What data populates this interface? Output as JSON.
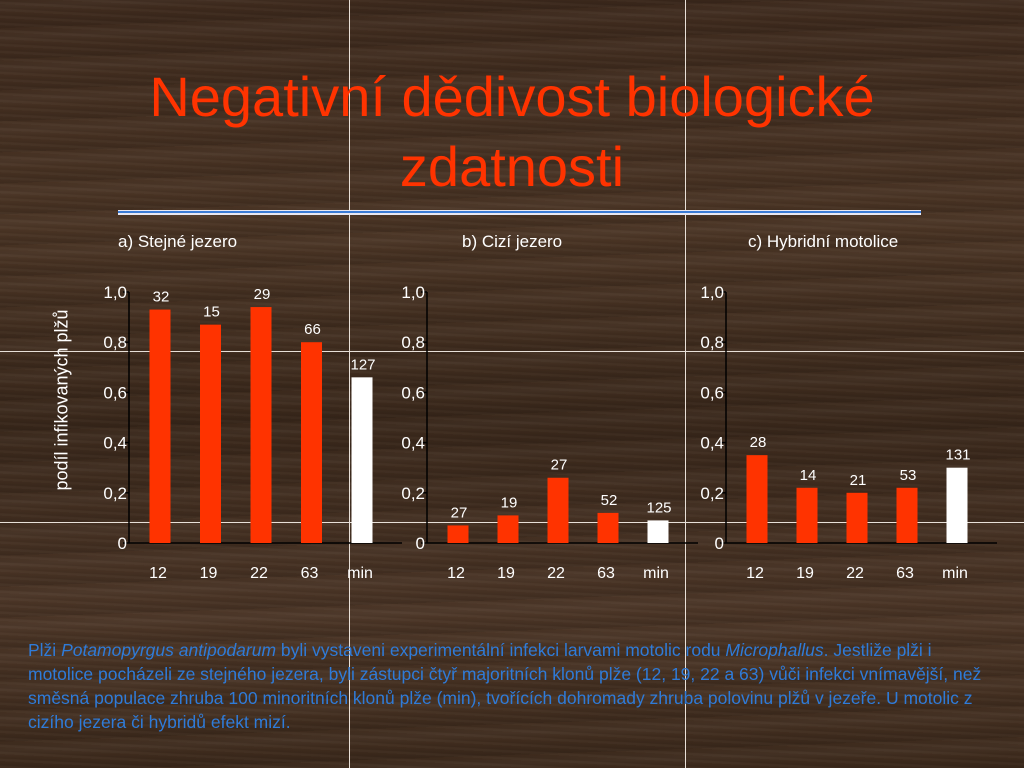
{
  "title": "Negativní dědivost biologické zdatnosti",
  "ylabel": "podíl infikovaných plžů",
  "colors": {
    "title": "#ff3300",
    "majority_bar": "#ff3300",
    "minority_bar": "#ffffff",
    "caption": "#2f7bd8",
    "text": "#ffffff"
  },
  "chart_data": [
    {
      "type": "bar",
      "title": "a) Stejné jezero",
      "categories": [
        "12",
        "19",
        "22",
        "63",
        "min"
      ],
      "values": [
        0.93,
        0.87,
        0.94,
        0.8,
        0.66
      ],
      "labels": [
        "32",
        "15",
        "29",
        "66",
        "127"
      ],
      "bar_colors": [
        "#ff3300",
        "#ff3300",
        "#ff3300",
        "#ff3300",
        "#ffffff"
      ],
      "ylim": [
        0,
        1.0
      ],
      "yticks": [
        "0",
        "0,2",
        "0,4",
        "0,6",
        "0,8",
        "1,0"
      ],
      "ylabel": "podíl infikovaných plžů"
    },
    {
      "type": "bar",
      "title": "b) Cizí jezero",
      "categories": [
        "12",
        "19",
        "22",
        "63",
        "min"
      ],
      "values": [
        0.07,
        0.11,
        0.26,
        0.12,
        0.09
      ],
      "labels": [
        "27",
        "19",
        "27",
        "52",
        "125"
      ],
      "bar_colors": [
        "#ff3300",
        "#ff3300",
        "#ff3300",
        "#ff3300",
        "#ffffff"
      ],
      "ylim": [
        0,
        1.0
      ],
      "yticks": [
        "0",
        "0,2",
        "0,4",
        "0,6",
        "0,8",
        "1,0"
      ]
    },
    {
      "type": "bar",
      "title": "c) Hybridní motolice",
      "categories": [
        "12",
        "19",
        "22",
        "63",
        "min"
      ],
      "values": [
        0.35,
        0.22,
        0.2,
        0.22,
        0.3
      ],
      "labels": [
        "28",
        "14",
        "21",
        "53",
        "131"
      ],
      "bar_colors": [
        "#ff3300",
        "#ff3300",
        "#ff3300",
        "#ff3300",
        "#ffffff"
      ],
      "ylim": [
        0,
        1.0
      ],
      "yticks": [
        "0",
        "0,2",
        "0,4",
        "0,6",
        "0,8",
        "1,0"
      ]
    }
  ],
  "caption": {
    "p1": "Plži ",
    "species": "Potamopyrgus antipodarum",
    "p2": " byli vystaveni experimentální infekci larvami motolic rodu ",
    "genus": "Microphallus",
    "p3": ". Jestliže plži i motolice pocházeli ze stejného jezera, byli zástupci čtyř majoritních klonů plže (12, 19, 22 a 63) vůči infekci vnímavější, než směsná populace zhruba 100 minoritních klonů plže (min), tvořících dohromady zhruba polovinu plžů v jezeře. U motolic z cizího jezera či hybridů efekt mizí."
  }
}
